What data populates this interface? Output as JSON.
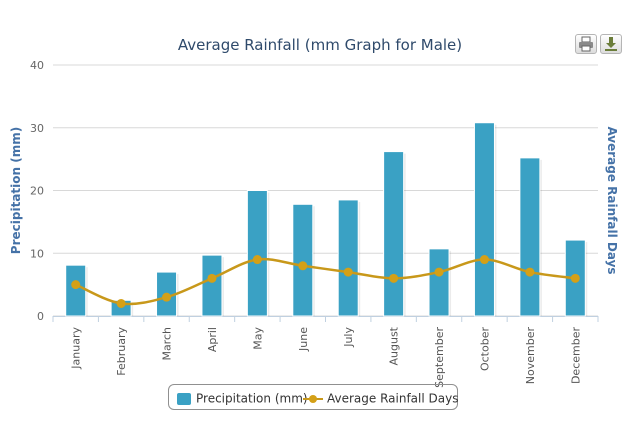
{
  "chart_data": {
    "type": "bar",
    "title": "Average Rainfall (mm Graph for Male)",
    "categories": [
      "January",
      "February",
      "March",
      "April",
      "May",
      "June",
      "July",
      "August",
      "September",
      "October",
      "November",
      "December"
    ],
    "series": [
      {
        "name": "Precipitation (mm)",
        "type": "bar",
        "axis": "left",
        "values": [
          8.1,
          2.5,
          7.0,
          9.7,
          20.0,
          17.8,
          18.5,
          26.2,
          10.7,
          30.8,
          25.2,
          12.1
        ]
      },
      {
        "name": "Average Rainfall Days",
        "type": "line",
        "axis": "right",
        "smooth": true,
        "values": [
          5,
          2,
          3,
          6,
          9,
          8,
          7,
          6,
          7,
          9,
          7,
          6
        ]
      }
    ],
    "yaxis_left": {
      "label": "Precipitation (mm)",
      "ylim": [
        0,
        40
      ],
      "ticks": [
        "0",
        "10",
        "20",
        "30",
        "40"
      ]
    },
    "yaxis_right": {
      "label": "Average Rainfall Days",
      "ylim": [
        0,
        40
      ]
    },
    "grid": true,
    "legend_position": "bottom-center",
    "colors": {
      "bar": "#3aa1c4",
      "line": "#c8981a",
      "marker": "#d4a017",
      "title": "#2f4a6b",
      "axis_label": "#4572a7"
    }
  },
  "toolbar": {
    "print_icon": "print-icon",
    "export_icon": "download-icon"
  }
}
